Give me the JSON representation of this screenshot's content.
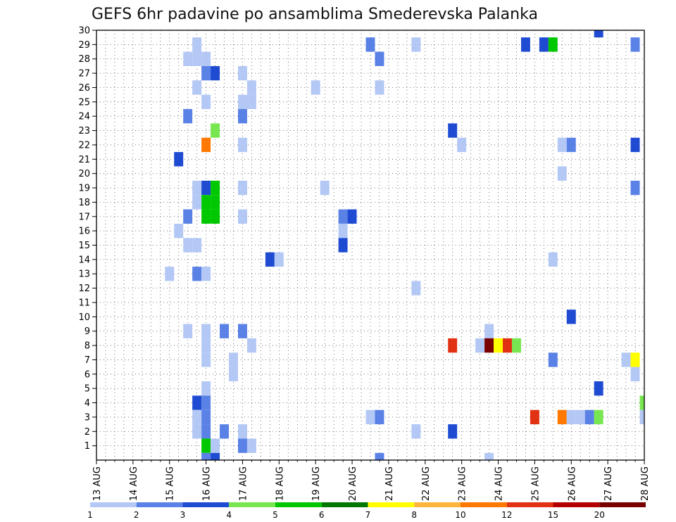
{
  "chart_data": {
    "type": "heatmap",
    "title": "GEFS 6hr padavine po ansamblima Smederevska Palanka",
    "xlabel": "",
    "ylabel": "",
    "x_tick_labels": [
      "13 AUG",
      "14 AUG",
      "15 AUG",
      "16 AUG",
      "17 AUG",
      "18 AUG",
      "19 AUG",
      "20 AUG",
      "21 AUG",
      "22 AUG",
      "23 AUG",
      "24 AUG",
      "25 AUG",
      "26 AUG",
      "27 AUG",
      "28 AUG"
    ],
    "x_range": [
      0,
      60
    ],
    "x_unit_note": "6-hour steps starting 13 AUG 00",
    "y_tick_labels": [
      "1",
      "2",
      "3",
      "4",
      "5",
      "6",
      "7",
      "8",
      "9",
      "10",
      "11",
      "12",
      "13",
      "14",
      "15",
      "16",
      "17",
      "18",
      "19",
      "20",
      "21",
      "22",
      "23",
      "24",
      "25",
      "26",
      "27",
      "28",
      "29",
      "30"
    ],
    "y_range": [
      0,
      30
    ],
    "grid": true,
    "colorbar": {
      "labels": [
        "1",
        "2",
        "3",
        "4",
        "5",
        "6",
        "7",
        "8",
        "10",
        "12",
        "15",
        "20"
      ],
      "colors": [
        "#b4c8f5",
        "#5a82e6",
        "#1e4bd2",
        "#78e650",
        "#00c800",
        "#007800",
        "#ffff00",
        "#ffb43c",
        "#ff7800",
        "#e13214",
        "#b40000",
        "#780000"
      ]
    },
    "cells": [
      [
        11,
        29,
        0
      ],
      [
        11,
        28,
        0
      ],
      [
        10,
        28,
        0
      ],
      [
        12,
        28,
        0
      ],
      [
        12,
        27,
        1
      ],
      [
        13,
        27,
        2
      ],
      [
        16,
        27,
        0
      ],
      [
        11,
        26,
        0
      ],
      [
        17,
        26,
        0
      ],
      [
        24,
        26,
        0
      ],
      [
        31,
        26,
        0
      ],
      [
        12,
        25,
        0
      ],
      [
        16,
        25,
        0
      ],
      [
        17,
        25,
        0
      ],
      [
        10,
        24,
        1
      ],
      [
        16,
        24,
        1
      ],
      [
        13,
        23,
        3
      ],
      [
        12,
        22,
        8
      ],
      [
        16,
        22,
        0
      ],
      [
        9,
        21,
        2
      ],
      [
        11,
        19,
        0
      ],
      [
        12,
        19,
        2
      ],
      [
        13,
        19,
        4
      ],
      [
        16,
        19,
        0
      ],
      [
        25,
        19,
        0
      ],
      [
        11,
        18,
        0
      ],
      [
        12,
        18,
        4
      ],
      [
        13,
        18,
        4
      ],
      [
        12,
        17,
        4
      ],
      [
        13,
        17,
        4
      ],
      [
        10,
        17,
        1
      ],
      [
        16,
        17,
        0
      ],
      [
        9,
        16,
        0
      ],
      [
        10,
        15,
        0
      ],
      [
        11,
        15,
        0
      ],
      [
        19,
        14,
        2
      ],
      [
        20,
        14,
        0
      ],
      [
        8,
        13,
        0
      ],
      [
        11,
        13,
        1
      ],
      [
        12,
        13,
        0
      ],
      [
        12,
        9,
        0
      ],
      [
        10,
        9,
        0
      ],
      [
        14,
        9,
        1
      ],
      [
        16,
        9,
        1
      ],
      [
        12,
        8,
        0
      ],
      [
        17,
        8,
        0
      ],
      [
        12,
        7,
        0
      ],
      [
        15,
        7,
        0
      ],
      [
        15,
        6,
        0
      ],
      [
        12,
        5,
        0
      ],
      [
        11,
        4,
        2
      ],
      [
        12,
        4,
        1
      ],
      [
        11,
        3,
        0
      ],
      [
        12,
        3,
        1
      ],
      [
        11,
        2,
        0
      ],
      [
        12,
        2,
        1
      ],
      [
        14,
        2,
        1
      ],
      [
        16,
        2,
        0
      ],
      [
        12,
        1,
        4
      ],
      [
        13,
        1,
        0
      ],
      [
        16,
        1,
        1
      ],
      [
        17,
        1,
        0
      ],
      [
        12,
        0,
        1
      ],
      [
        13,
        0,
        2
      ],
      [
        30,
        29,
        1
      ],
      [
        35,
        29,
        0
      ],
      [
        31,
        28,
        1
      ],
      [
        31,
        0,
        1
      ],
      [
        27,
        17,
        1
      ],
      [
        28,
        17,
        2
      ],
      [
        27,
        16,
        0
      ],
      [
        27,
        15,
        2
      ],
      [
        30,
        3,
        0
      ],
      [
        31,
        3,
        1
      ],
      [
        35,
        12,
        0
      ],
      [
        35,
        2,
        0
      ],
      [
        39,
        23,
        2
      ],
      [
        40,
        22,
        0
      ],
      [
        39,
        8,
        9
      ],
      [
        39,
        2,
        2
      ],
      [
        43,
        9,
        0
      ],
      [
        42,
        8,
        0
      ],
      [
        43,
        8,
        11
      ],
      [
        44,
        8,
        6
      ],
      [
        45,
        8,
        9
      ],
      [
        46,
        8,
        3
      ],
      [
        43,
        0,
        0
      ],
      [
        47,
        29,
        2
      ],
      [
        49,
        29,
        2
      ],
      [
        50,
        29,
        4
      ],
      [
        55,
        30,
        2
      ],
      [
        51,
        22,
        0
      ],
      [
        52,
        22,
        1
      ],
      [
        51,
        20,
        0
      ],
      [
        50,
        14,
        0
      ],
      [
        52,
        10,
        2
      ],
      [
        50,
        7,
        1
      ],
      [
        48,
        3,
        9
      ],
      [
        51,
        3,
        8
      ],
      [
        52,
        3,
        0
      ],
      [
        53,
        3,
        0
      ],
      [
        54,
        3,
        1
      ],
      [
        55,
        3,
        3
      ],
      [
        55,
        5,
        2
      ],
      [
        59,
        29,
        1
      ],
      [
        59,
        22,
        2
      ],
      [
        59,
        19,
        1
      ],
      [
        58,
        7,
        0
      ],
      [
        59,
        7,
        6
      ],
      [
        59,
        6,
        0
      ],
      [
        60,
        4,
        3
      ],
      [
        60,
        3,
        0
      ]
    ]
  }
}
